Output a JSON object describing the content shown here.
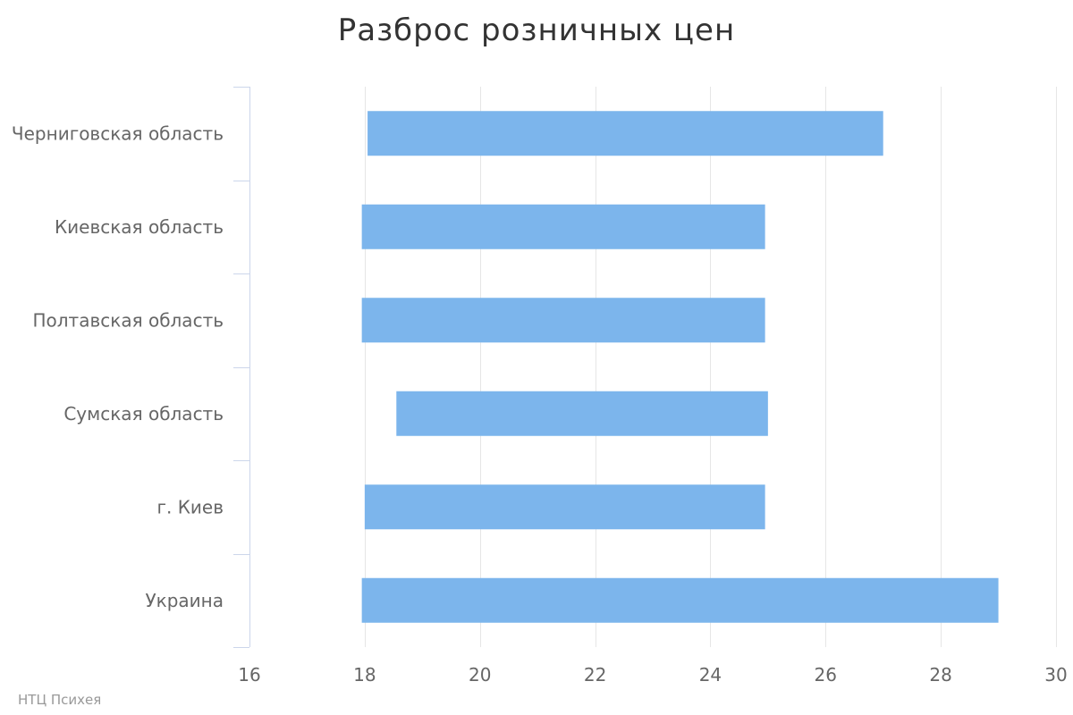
{
  "chart_data": {
    "type": "bar",
    "orientation": "horizontal",
    "variant": "range",
    "title": "Разброс розничных цен",
    "categories": [
      "Черниговская область",
      "Киевская область",
      "Полтавская область",
      "Сумская область",
      "г. Киев",
      "Украина"
    ],
    "series": [
      {
        "low": [
          18.05,
          17.95,
          17.95,
          18.55,
          18.0,
          17.95
        ],
        "high": [
          27.0,
          24.95,
          24.95,
          25.0,
          24.95,
          29.0
        ]
      }
    ],
    "xlim": [
      16,
      30
    ],
    "xticks": [
      16,
      18,
      20,
      22,
      24,
      26,
      28,
      30
    ],
    "xlabel": "",
    "ylabel": "",
    "grid": true,
    "legend": "none",
    "bar_color": "#7cb5ec",
    "grid_color": "#e6e6e6",
    "axis_color": "#ccd6eb",
    "label_color": "#666666"
  },
  "credits": "НТЦ Психея"
}
